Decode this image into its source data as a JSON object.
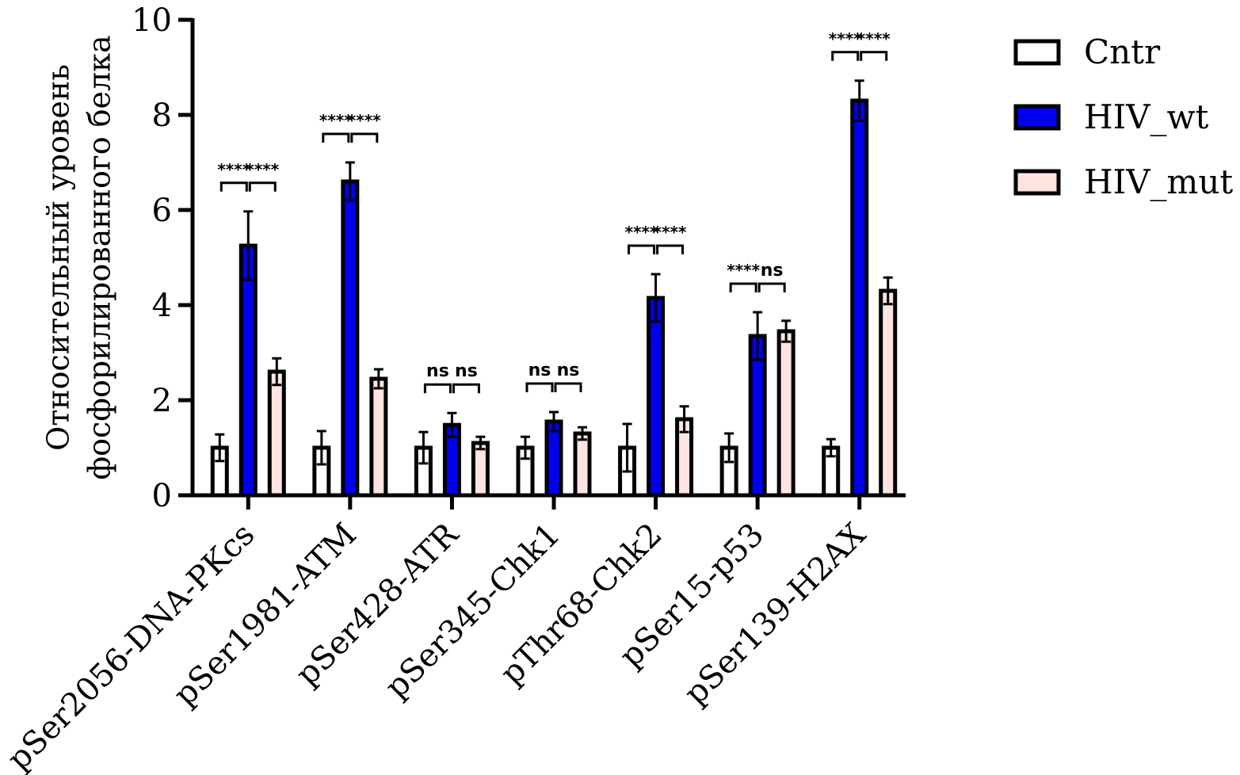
{
  "chart_data": {
    "type": "bar",
    "title": "",
    "xlabel": "",
    "ylabel": [
      "Относительный уровень",
      "фосфорилированного белка"
    ],
    "ylim": [
      0,
      10
    ],
    "yticks": [
      0,
      2,
      4,
      6,
      8,
      10
    ],
    "categories": [
      "pSer2056-DNA-PKcs",
      "pSer1981-ATM",
      "pSer428-ATR",
      "pSer345-Chk1",
      "pThr68-Chk2",
      "pSer15-p53",
      "pSer139-H2AX"
    ],
    "series": [
      {
        "name": "Cntr",
        "color": "#ffffff",
        "values": [
          1.0,
          1.0,
          1.0,
          1.0,
          1.0,
          1.0,
          1.0
        ],
        "errors": [
          0.28,
          0.35,
          0.33,
          0.23,
          0.5,
          0.3,
          0.18
        ]
      },
      {
        "name": "HIV_wt",
        "color": "#0000ee",
        "values": [
          5.25,
          6.6,
          1.48,
          1.55,
          4.15,
          3.35,
          8.3
        ],
        "errors": [
          0.72,
          0.4,
          0.25,
          0.2,
          0.5,
          0.5,
          0.42
        ]
      },
      {
        "name": "HIV_mut",
        "color": "#ffe4e1",
        "values": [
          2.6,
          2.45,
          1.1,
          1.3,
          1.6,
          3.45,
          4.3
        ],
        "errors": [
          0.28,
          0.2,
          0.13,
          0.13,
          0.27,
          0.22,
          0.28
        ]
      }
    ],
    "significance": [
      [
        "****",
        "****"
      ],
      [
        "****",
        "****"
      ],
      [
        "ns",
        "ns"
      ],
      [
        "ns",
        "ns"
      ],
      [
        "****",
        "****"
      ],
      [
        "****",
        "ns"
      ],
      [
        "****",
        "****"
      ]
    ],
    "legend_position": "top-right",
    "grid": false
  }
}
